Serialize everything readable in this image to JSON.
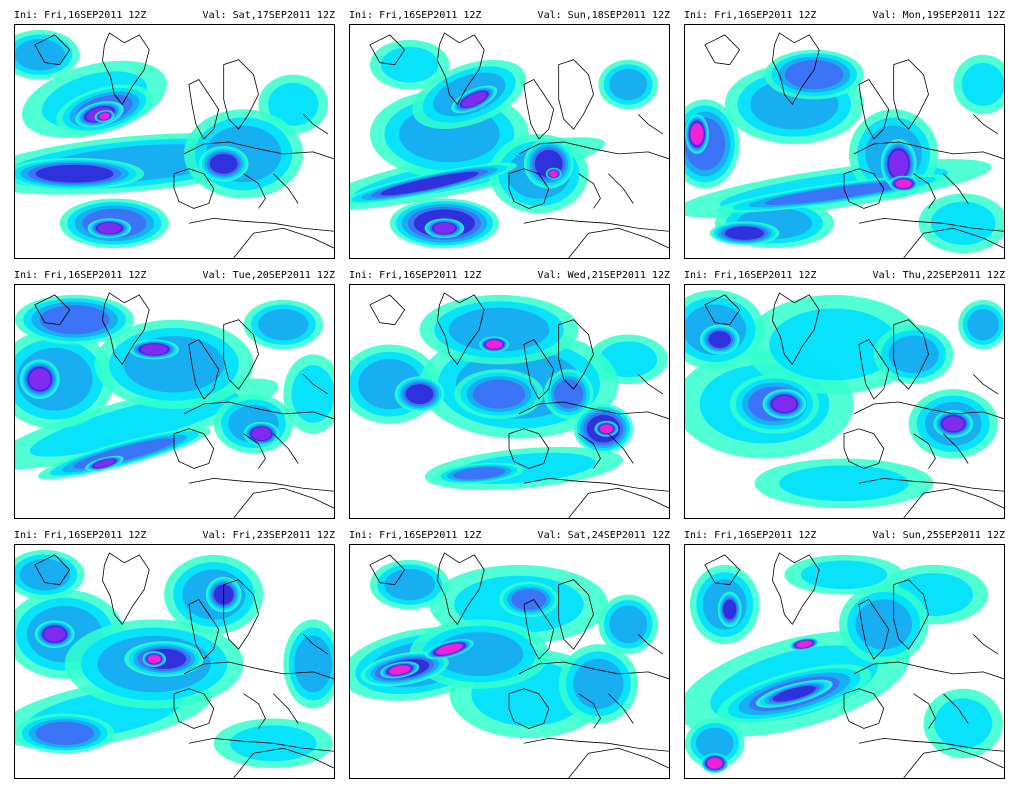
{
  "colors": {
    "light": "#33ffcc",
    "cyan": "#00e0ff",
    "sky": "#1aa8f0",
    "blue": "#3f6ef7",
    "deep": "#2e2ad8",
    "violet": "#8a2cf0",
    "magenta": "#ff20d0",
    "coast": "#000000"
  },
  "panels": [
    {
      "ini": "Ini: Fri,16SEP2011 12Z",
      "val": "Val: Sat,17SEP2011 12Z"
    },
    {
      "ini": "Ini: Fri,16SEP2011 12Z",
      "val": "Val: Sun,18SEP2011 12Z"
    },
    {
      "ini": "Ini: Fri,16SEP2011 12Z",
      "val": "Val: Mon,19SEP2011 12Z"
    },
    {
      "ini": "Ini: Fri,16SEP2011 12Z",
      "val": "Val: Tue,20SEP2011 12Z"
    },
    {
      "ini": "Ini: Fri,16SEP2011 12Z",
      "val": "Val: Wed,21SEP2011 12Z"
    },
    {
      "ini": "Ini: Fri,16SEP2011 12Z",
      "val": "Val: Thu,22SEP2011 12Z"
    },
    {
      "ini": "Ini: Fri,16SEP2011 12Z",
      "val": "Val: Fri,23SEP2011 12Z"
    },
    {
      "ini": "Ini: Fri,16SEP2011 12Z",
      "val": "Val: Sat,24SEP2011 12Z"
    },
    {
      "ini": "Ini: Fri,16SEP2011 12Z",
      "val": "Val: Sun,25SEP2011 12Z"
    }
  ]
}
